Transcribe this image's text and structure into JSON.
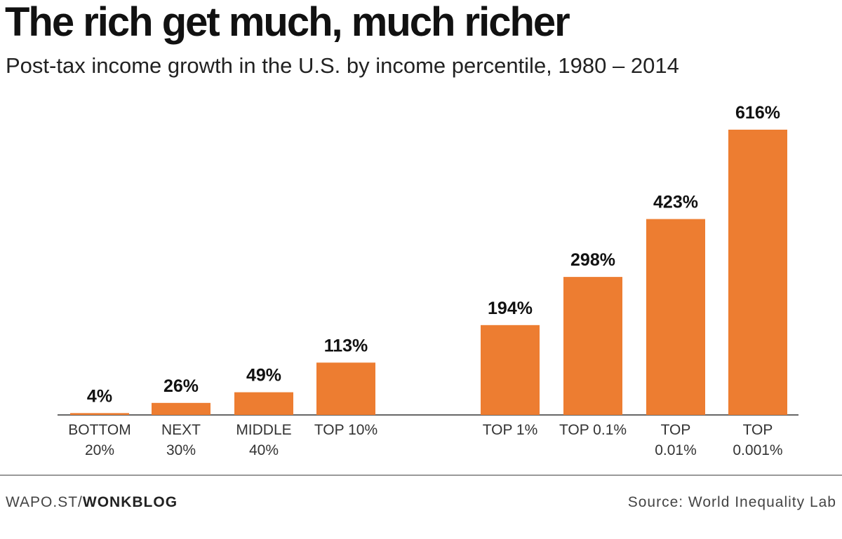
{
  "header": {
    "title": "The rich get much, much richer",
    "subtitle": "Post-tax income growth in the U.S. by income percentile, 1980 – 2014"
  },
  "footer": {
    "credit_prefix": "WAPO.ST/",
    "credit_name": "WONKBLOG",
    "source": "Source: World Inequality Lab"
  },
  "colors": {
    "bar": "#ed7d31"
  },
  "chart_data": {
    "type": "bar",
    "title": "The rich get much, much richer",
    "subtitle": "Post-tax income growth in the U.S. by income percentile, 1980 – 2014",
    "xlabel": "",
    "ylabel": "",
    "ylim": [
      0,
      616
    ],
    "grid": false,
    "categories": [
      [
        "BOTTOM",
        "20%"
      ],
      [
        "NEXT",
        "30%"
      ],
      [
        "MIDDLE",
        "40%"
      ],
      [
        "TOP 10%"
      ],
      [
        "TOP 1%"
      ],
      [
        "TOP 0.1%"
      ],
      [
        "TOP",
        "0.01%"
      ],
      [
        "TOP",
        "0.001%"
      ]
    ],
    "values": [
      4,
      26,
      49,
      113,
      194,
      298,
      423,
      616
    ],
    "value_labels": [
      "4%",
      "26%",
      "49%",
      "113%",
      "194%",
      "298%",
      "423%",
      "616%"
    ],
    "groups": [
      [
        0,
        1,
        2,
        3
      ],
      [
        4,
        5,
        6,
        7
      ]
    ]
  }
}
